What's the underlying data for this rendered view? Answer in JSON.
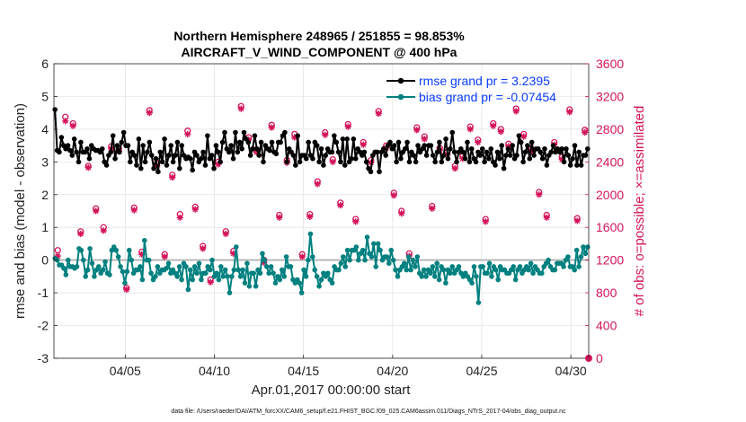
{
  "chart_data": {
    "type": "line",
    "title": "Northern Hemisphere 248965 / 251855 = 98.853%",
    "subtitle": "AIRCRAFT_V_WIND_COMPONENT @ 400 hPa",
    "xlabel": "Apr.01,2017 00:00:00 start",
    "ylabel": "rmse and bias (model - observation)",
    "ylabel_right": "# of obs: o=possible; ×=assimilated",
    "footer": "data file: /Users/raeder/DAI/ATM_forcXX/CAM6_setup/f.e21.FHIST_BGC.f09_025.CAM6assim.011/Diags_NTrS_2017-04/obs_diag_output.nc",
    "x_ticks": [
      {
        "day": 5,
        "label": "04/05"
      },
      {
        "day": 10,
        "label": "04/10"
      },
      {
        "day": 15,
        "label": "04/15"
      },
      {
        "day": 20,
        "label": "04/20"
      },
      {
        "day": 25,
        "label": "04/25"
      },
      {
        "day": 30,
        "label": "04/30"
      }
    ],
    "xlim": [
      1,
      31
    ],
    "ylim": [
      -3,
      6
    ],
    "y_ticks": [
      "-3",
      "-2",
      "-1",
      "0",
      "1",
      "2",
      "3",
      "4",
      "5",
      "6"
    ],
    "ylim_right": [
      0,
      3600
    ],
    "y_ticks_right": [
      "0",
      "400",
      "800",
      "1200",
      "1600",
      "2000",
      "2400",
      "2800",
      "3200",
      "3600"
    ],
    "legend": [
      {
        "name": "rmse grand pr = 3.2395",
        "color": "#000000"
      },
      {
        "name": "bias grand pr = -0.07454",
        "color": "#008080"
      }
    ],
    "grid": true,
    "zero_line": true,
    "colors": {
      "rmse": "#000000",
      "bias": "#008080",
      "obs": "#d4145a",
      "zero": "#b8b8b8",
      "grid": "#e0e0e0"
    },
    "series": [
      {
        "name": "rmse",
        "values": [
          4.6,
          3.35,
          3.3,
          3.75,
          3.5,
          3.4,
          3.5,
          3.35,
          3.2,
          3.7,
          3.3,
          3.0,
          3.6,
          3.3,
          3.3,
          3.4,
          3.1,
          3.5,
          3.4,
          3.35,
          3.35,
          3.3,
          3.4,
          3.0,
          2.9,
          3.2,
          3.3,
          3.8,
          3.1,
          3.5,
          3.3,
          3.6,
          3.9,
          3.5,
          3.5,
          3.0,
          3.3,
          3.2,
          2.9,
          3.7,
          2.8,
          3.5,
          3.0,
          3.3,
          3.6,
          3.2,
          2.8,
          3.1,
          2.7,
          3.3,
          3.0,
          3.7,
          2.9,
          3.2,
          3.5,
          3.0,
          3.2,
          3.6,
          2.8,
          3.5,
          3.2,
          3.1,
          3.15,
          3.1,
          2.75,
          3.3,
          3.2,
          3.0,
          3.1,
          3.3,
          2.9,
          3.8,
          3.1,
          3.2,
          2.8,
          3.5,
          3.3,
          3.0,
          3.6,
          3.9,
          3.4,
          3.3,
          3.5,
          3.1,
          3.9,
          3.3,
          3.6,
          3.4,
          3.9,
          3.7,
          3.6,
          3.2,
          3.4,
          3.8,
          3.4,
          3.2,
          3.6,
          3.0,
          3.5,
          3.4,
          3.35,
          3.6,
          3.3,
          3.25,
          3.6,
          3.6,
          3.8,
          3.9,
          3.0,
          3.4,
          3.3,
          3.2,
          2.9,
          3.8,
          3.0,
          3.2,
          3.2,
          3.1,
          3.6,
          3.2,
          3.1,
          3.6,
          3.5,
          3.0,
          3.4,
          2.9,
          3.2,
          3.4,
          3.3,
          3.3,
          3.8,
          3.6,
          3.3,
          3.0,
          3.7,
          2.9,
          3.7,
          3.0,
          3.1,
          3.7,
          3.1,
          3.4,
          3.3,
          3.2,
          3.3,
          3.0,
          2.8,
          2.7,
          3.2,
          3.3,
          3.3,
          2.7,
          3.3,
          3.4,
          3.2,
          3.5,
          3.6,
          3.4,
          3.5,
          3.0,
          3.6,
          3.1,
          3.3,
          3.4,
          3.6,
          3.0,
          3.3,
          3.2,
          3.0,
          3.5,
          3.3,
          3.4,
          3.5,
          3.2,
          3.5,
          3.5,
          3.2,
          3.0,
          3.3,
          3.6,
          3.0,
          3.2,
          3.7,
          3.1,
          3.4,
          3.9,
          3.3,
          3.0,
          3.3,
          3.4,
          3.3,
          3.1,
          3.6,
          3.0,
          3.4,
          3.1,
          3.0,
          3.3,
          3.2,
          3.4,
          3.0,
          3.3,
          3.1,
          3.4,
          3.0,
          2.9,
          3.3,
          3.1,
          3.5,
          2.8,
          3.2,
          3.4,
          3.2,
          3.5,
          3.1,
          3.2,
          3.8,
          3.6,
          3.0,
          3.3,
          3.5,
          3.1,
          3.6,
          3.2,
          3.4,
          3.4,
          3.3,
          3.1,
          3.4,
          2.9,
          3.2,
          3.3,
          3.5,
          3.3,
          3.4,
          3.3,
          3.4,
          3.0,
          3.4,
          3.2,
          2.9,
          3.1,
          3.5,
          2.9,
          3.3,
          2.9,
          3.2,
          3.2,
          3.4
        ]
      },
      {
        "name": "bias",
        "values": [
          0.05,
          0.0,
          -0.15,
          -0.15,
          -0.25,
          -0.45,
          0.0,
          -0.2,
          -0.2,
          -0.25,
          -0.2,
          0.35,
          0.3,
          0.0,
          -0.5,
          -0.3,
          0.35,
          -0.1,
          -0.5,
          -0.3,
          -0.2,
          -0.4,
          -0.3,
          -0.05,
          -0.4,
          -0.45,
          0.3,
          0.4,
          0.3,
          0.1,
          -0.2,
          -0.35,
          -0.7,
          -0.35,
          0.3,
          0.0,
          -0.4,
          -0.3,
          -0.3,
          -0.2,
          -0.6,
          0.6,
          0.0,
          0.0,
          -0.4,
          -0.6,
          -0.5,
          -0.2,
          -0.4,
          -0.3,
          -0.3,
          -0.25,
          -0.1,
          -0.4,
          -0.3,
          -0.4,
          -0.5,
          -0.2,
          -0.6,
          -0.1,
          -0.2,
          -0.9,
          -0.3,
          -0.6,
          -0.2,
          -0.4,
          -0.1,
          -0.6,
          -0.4,
          -0.4,
          -0.2,
          -0.3,
          0.0,
          -0.5,
          -0.4,
          -0.6,
          -0.2,
          -0.5,
          -0.3,
          -0.5,
          -1.0,
          -0.5,
          -0.3,
          0.4,
          -0.3,
          -0.5,
          -0.3,
          -0.7,
          -0.1,
          -0.8,
          -0.4,
          -0.4,
          -0.8,
          -0.3,
          -0.4,
          0.2,
          0.0,
          -0.2,
          -0.4,
          -0.2,
          -0.4,
          -0.7,
          -0.5,
          -0.6,
          -0.3,
          -0.5,
          0.1,
          -0.2,
          -0.2,
          -0.6,
          -0.7,
          -0.6,
          -0.7,
          -1.0,
          -0.3,
          -0.5,
          0.0,
          0.8,
          0.1,
          -0.3,
          -0.5,
          -0.8,
          -0.6,
          -0.4,
          -0.5,
          -0.4,
          -0.6,
          -0.7,
          -0.2,
          -0.3,
          -0.3,
          -0.1,
          0.1,
          -0.2,
          0.3,
          0.0,
          0.3,
          0.3,
          0.4,
          0.0,
          0.2,
          0.3,
          0.0,
          0.7,
          0.2,
          0.1,
          0.5,
          -0.2,
          0.5,
          0.3,
          0.0,
          0.1,
          0.1,
          -0.1,
          0.3,
          0.0,
          -0.3,
          -0.5,
          -0.3,
          -0.2,
          -0.1,
          -0.3,
          0.1,
          -0.3,
          0.0,
          -0.2,
          0.1,
          -0.4,
          -0.5,
          -0.3,
          -0.5,
          -0.3,
          -0.4,
          -0.2,
          -0.5,
          -0.1,
          -0.6,
          -0.2,
          -0.3,
          -0.7,
          -0.3,
          -0.4,
          -0.2,
          -0.4,
          -0.3,
          -0.2,
          -0.4,
          -0.5,
          -0.4,
          -0.5,
          -0.6,
          -0.7,
          -0.2,
          -0.5,
          -1.3,
          -0.2,
          -0.2,
          -0.4,
          -0.4,
          -0.1,
          -0.5,
          -0.2,
          -0.3,
          -0.6,
          -0.2,
          -0.3,
          -0.3,
          -0.4,
          -0.4,
          -0.3,
          -0.2,
          -0.6,
          -0.3,
          -0.2,
          -0.4,
          -0.3,
          -0.2,
          -0.3,
          -0.1,
          -0.4,
          -0.2,
          -0.3,
          -0.4,
          -0.4,
          -0.2,
          -0.1,
          0.0,
          -0.2,
          -0.3,
          -0.3,
          -0.1,
          -0.1,
          -0.1,
          -0.2,
          0.0,
          0.1,
          -0.2,
          -0.2,
          -0.3,
          0.3,
          -0.2,
          0.1,
          0.4,
          0.2,
          0.4
        ]
      },
      {
        "name": "obs_possible",
        "values": [
          1320,
          2950,
          2870,
          1550,
          2350,
          1830,
          1600,
          2590,
          2560,
          860,
          1840,
          1300,
          3030,
          2380,
          1270,
          2240,
          1760,
          2780,
          1850,
          1370,
          960,
          2400,
          1550,
          1310,
          3080,
          2700,
          2550,
          1200,
          2850,
          1750,
          2420,
          2740,
          1270,
          1760,
          2160,
          2760,
          2430,
          1900,
          2860,
          1700,
          2640,
          2420,
          3020,
          2600,
          2020,
          1800,
          1280,
          2820,
          2710,
          1860,
          2570,
          2520,
          2350,
          2470,
          2830,
          2670,
          1700,
          2870,
          2800,
          2620,
          3050,
          2740,
          2560,
          2030,
          1750,
          2640,
          2460,
          3040,
          1710,
          2790
        ]
      },
      {
        "name": "obs_assimilated",
        "values": [
          1250,
          2900,
          2840,
          1520,
          2330,
          1800,
          1560,
          2560,
          2530,
          840,
          1810,
          1270,
          3000,
          2350,
          1240,
          2210,
          1720,
          2740,
          1820,
          1340,
          930,
          2370,
          1520,
          1280,
          3050,
          2670,
          2520,
          1170,
          2820,
          1720,
          2390,
          2700,
          1240,
          1730,
          2130,
          2730,
          2400,
          1870,
          2830,
          1670,
          2610,
          2390,
          2990,
          2570,
          1990,
          1770,
          1250,
          2790,
          2680,
          1830,
          2540,
          2490,
          2320,
          2440,
          2800,
          2640,
          1670,
          2840,
          2770,
          2590,
          3020,
          2710,
          2530,
          2000,
          1720,
          2610,
          2430,
          3010,
          1680,
          2760
        ]
      }
    ]
  }
}
